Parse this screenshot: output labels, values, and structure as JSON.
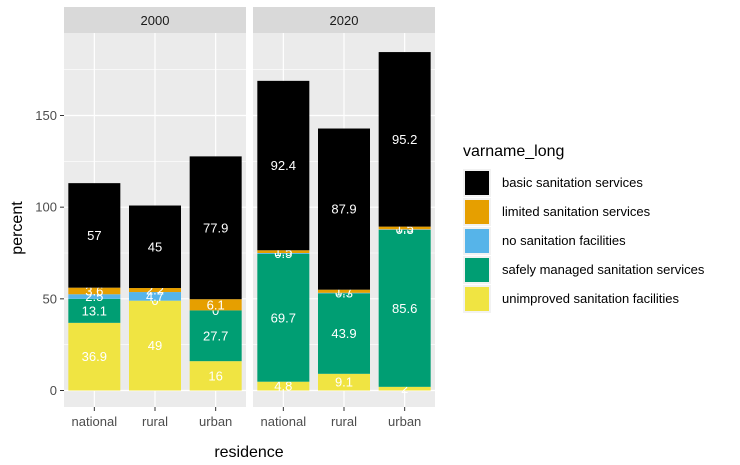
{
  "chart_data": {
    "type": "bar",
    "stacked": true,
    "facet_by": "year",
    "facets": [
      {
        "label": "2000",
        "categories": [
          "national",
          "rural",
          "urban"
        ],
        "series": [
          {
            "name": "unimproved sanitation facilities",
            "values": [
              36.9,
              49,
              16
            ],
            "labels": [
              "36.9",
              "49",
              "16"
            ]
          },
          {
            "name": "safely managed sanitation services",
            "values": [
              13.1,
              0,
              27.7
            ],
            "labels": [
              "13.1",
              "0",
              "27.7"
            ]
          },
          {
            "name": "no sanitation facilities",
            "values": [
              2.5,
              4.7,
              0
            ],
            "labels": [
              "2.5",
              "4.7",
              "0"
            ]
          },
          {
            "name": "limited sanitation services",
            "values": [
              3.6,
              2.2,
              6.1
            ],
            "labels": [
              "3.6",
              "2.2",
              "6.1"
            ]
          },
          {
            "name": "basic sanitation services",
            "values": [
              57,
              45,
              77.9
            ],
            "labels": [
              "57",
              "45",
              "77.9"
            ]
          }
        ]
      },
      {
        "label": "2020",
        "categories": [
          "national",
          "rural",
          "urban"
        ],
        "series": [
          {
            "name": "unimproved sanitation facilities",
            "values": [
              4.8,
              9.1,
              2
            ],
            "labels": [
              "4.8",
              "9.1",
              "2"
            ]
          },
          {
            "name": "safely managed sanitation services",
            "values": [
              69.7,
              43.9,
              85.6
            ],
            "labels": [
              "69.7",
              "43.9",
              "85.6"
            ]
          },
          {
            "name": "no sanitation facilities",
            "values": [
              0.5,
              0.3,
              0.3
            ],
            "labels": [
              "0.5",
              "0.3",
              "0.3"
            ]
          },
          {
            "name": "limited sanitation services",
            "values": [
              1.5,
              1.7,
              1.5
            ],
            "labels": [
              "1.5",
              "1.7",
              "1.5"
            ]
          },
          {
            "name": "basic sanitation services",
            "values": [
              92.4,
              87.9,
              95.2
            ],
            "labels": [
              "92.4",
              "87.9",
              "95.2"
            ]
          }
        ]
      }
    ],
    "colors": {
      "basic sanitation services": "#000000",
      "limited sanitation services": "#E69F00",
      "no sanitation facilities": "#56B4E9",
      "safely managed sanitation services": "#009E73",
      "unimproved sanitation facilities": "#F0E442"
    },
    "xlabel": "residence",
    "ylabel": "percent",
    "yticks": [
      0,
      50,
      100,
      150
    ],
    "ylim": [
      -9,
      195
    ],
    "grid": true,
    "legend": {
      "title": "varname_long",
      "position": "right",
      "entries": [
        "basic sanitation services",
        "limited sanitation services",
        "no sanitation facilities",
        "safely managed sanitation services",
        "unimproved sanitation facilities"
      ]
    }
  }
}
